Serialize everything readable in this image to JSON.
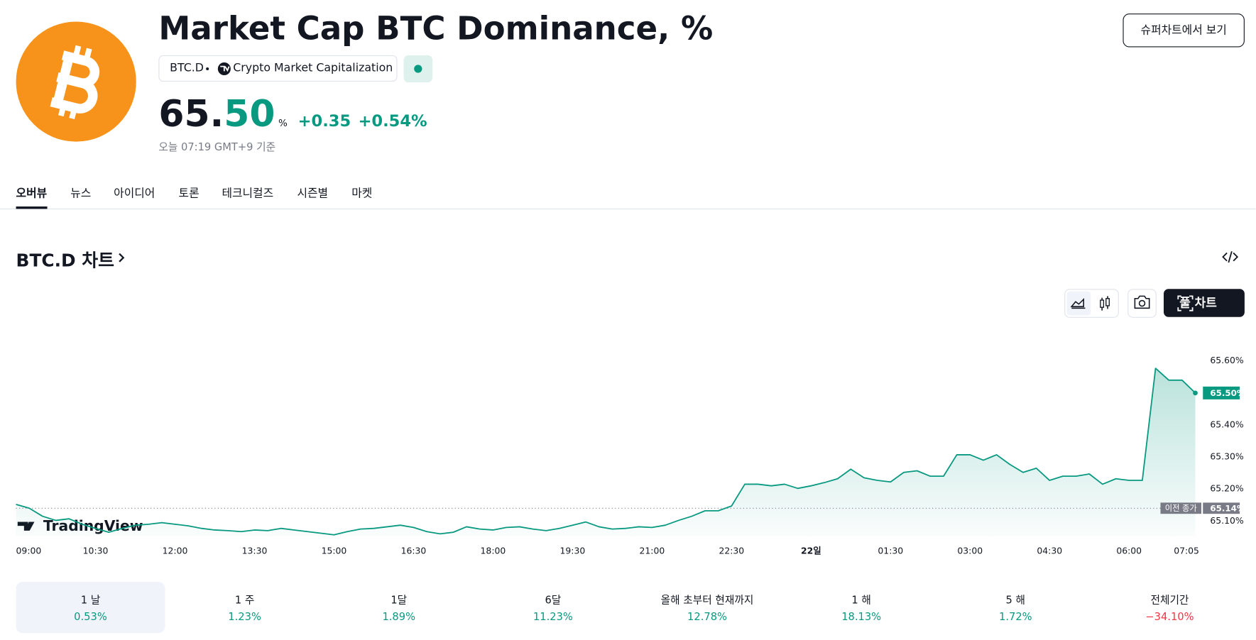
{
  "header": {
    "title": "Market Cap BTC Dominance, %",
    "symbol": "BTC.D",
    "source": "Crypto Market Capitalization",
    "price": {
      "main": "65.",
      "highlight": "50",
      "unit": "%"
    },
    "change": "+0.35",
    "change_pct": "+0.54%",
    "time": "오늘 07:19 GMT+9 기준",
    "button": "슈퍼차트에서 보기"
  },
  "tabs": {
    "items": [
      "오버뷰",
      "뉴스",
      "아이디어",
      "토론",
      "테크니컬즈",
      "시즌별",
      "마켓"
    ],
    "active_index": 0
  },
  "section": {
    "title": "BTC.D 차트",
    "full_chart": "풀 차트",
    "watermark": "TradingView"
  },
  "periods": {
    "selected_index": 0,
    "items": [
      {
        "label": "1 날",
        "value": "0.53%",
        "color": "#089981"
      },
      {
        "label": "1 주",
        "value": "1.23%",
        "color": "#089981"
      },
      {
        "label": "1달",
        "value": "1.89%",
        "color": "#089981"
      },
      {
        "label": "6달",
        "value": "11.23%",
        "color": "#089981"
      },
      {
        "label": "올해 초부터 현재까지",
        "value": "12.78%",
        "color": "#089981"
      },
      {
        "label": "1 해",
        "value": "18.13%",
        "color": "#089981"
      },
      {
        "label": "5 해",
        "value": "1.72%",
        "color": "#089981"
      },
      {
        "label": "전체기간",
        "value": "−34.10%",
        "color": "#f23645"
      }
    ]
  },
  "chart_data": {
    "type": "area",
    "color": "#089981",
    "x": [
      "09:00",
      "09:15",
      "09:30",
      "09:45",
      "10:00",
      "10:15",
      "10:30",
      "10:45",
      "11:00",
      "11:15",
      "11:30",
      "11:45",
      "12:00",
      "12:15",
      "12:30",
      "12:45",
      "13:00",
      "13:15",
      "13:30",
      "13:45",
      "14:00",
      "14:15",
      "14:30",
      "14:45",
      "15:00",
      "15:15",
      "15:30",
      "15:45",
      "16:00",
      "16:15",
      "16:30",
      "16:45",
      "17:00",
      "17:15",
      "17:30",
      "17:45",
      "18:00",
      "18:15",
      "18:30",
      "18:45",
      "19:00",
      "19:15",
      "19:30",
      "19:45",
      "20:00",
      "20:15",
      "20:30",
      "20:45",
      "21:00",
      "21:15",
      "21:30",
      "21:45",
      "22:00",
      "22:15",
      "22:30",
      "22:45",
      "23:00",
      "23:15",
      "23:30",
      "23:45",
      "00:00",
      "00:15",
      "00:30",
      "00:45",
      "01:00",
      "01:15",
      "01:30",
      "01:45",
      "02:00",
      "02:15",
      "02:30",
      "02:45",
      "03:00",
      "03:15",
      "03:30",
      "03:45",
      "04:00",
      "04:15",
      "04:30",
      "04:45",
      "05:00",
      "05:15",
      "05:30",
      "05:45",
      "06:00",
      "06:15",
      "06:30",
      "06:45",
      "07:00",
      "07:15"
    ],
    "values": [
      65.152,
      65.14,
      65.115,
      65.102,
      65.107,
      65.09,
      65.077,
      65.065,
      65.077,
      65.087,
      65.09,
      65.095,
      65.09,
      65.085,
      65.077,
      65.072,
      65.07,
      65.067,
      65.072,
      65.07,
      65.077,
      65.072,
      65.067,
      65.062,
      65.057,
      65.067,
      65.075,
      65.077,
      65.082,
      65.087,
      65.08,
      65.067,
      65.06,
      65.065,
      65.082,
      65.075,
      65.072,
      65.08,
      65.082,
      65.075,
      65.07,
      65.077,
      65.087,
      65.097,
      65.082,
      65.075,
      65.077,
      65.082,
      65.08,
      65.087,
      65.102,
      65.115,
      65.132,
      65.132,
      65.147,
      65.215,
      65.215,
      65.21,
      65.215,
      65.202,
      65.21,
      65.22,
      65.232,
      65.262,
      65.235,
      65.227,
      65.222,
      65.252,
      65.257,
      65.24,
      65.24,
      65.307,
      65.307,
      65.29,
      65.307,
      65.277,
      65.252,
      65.265,
      65.227,
      65.24,
      65.24,
      65.247,
      65.215,
      65.232,
      65.227,
      65.227,
      65.577,
      65.54,
      65.54,
      65.5
    ],
    "xlim": [
      "09:00",
      "07:20"
    ],
    "xticks": [
      "09:00",
      "10:30",
      "12:00",
      "13:30",
      "15:00",
      "16:30",
      "18:00",
      "19:30",
      "21:00",
      "22:30",
      {
        "value": "00:00",
        "label": "22일"
      },
      "01:30",
      "03:00",
      "04:30",
      "06:00",
      "07:05"
    ],
    "ylim": [
      65.0525,
      65.6825
    ],
    "yticks": [
      {
        "value": 65.1,
        "label": "65.10%"
      },
      {
        "value": 65.2,
        "label": "65.20%"
      },
      {
        "value": 65.3,
        "label": "65.30%"
      },
      {
        "value": 65.4,
        "label": "65.40%"
      },
      {
        "value": 65.6,
        "label": "65.60%"
      }
    ],
    "last_value": {
      "value": 65.5,
      "label": "65.50%"
    },
    "previous_close": {
      "name": "이전 종가",
      "value": 65.14,
      "label": "65.14%"
    },
    "grid": false
  }
}
